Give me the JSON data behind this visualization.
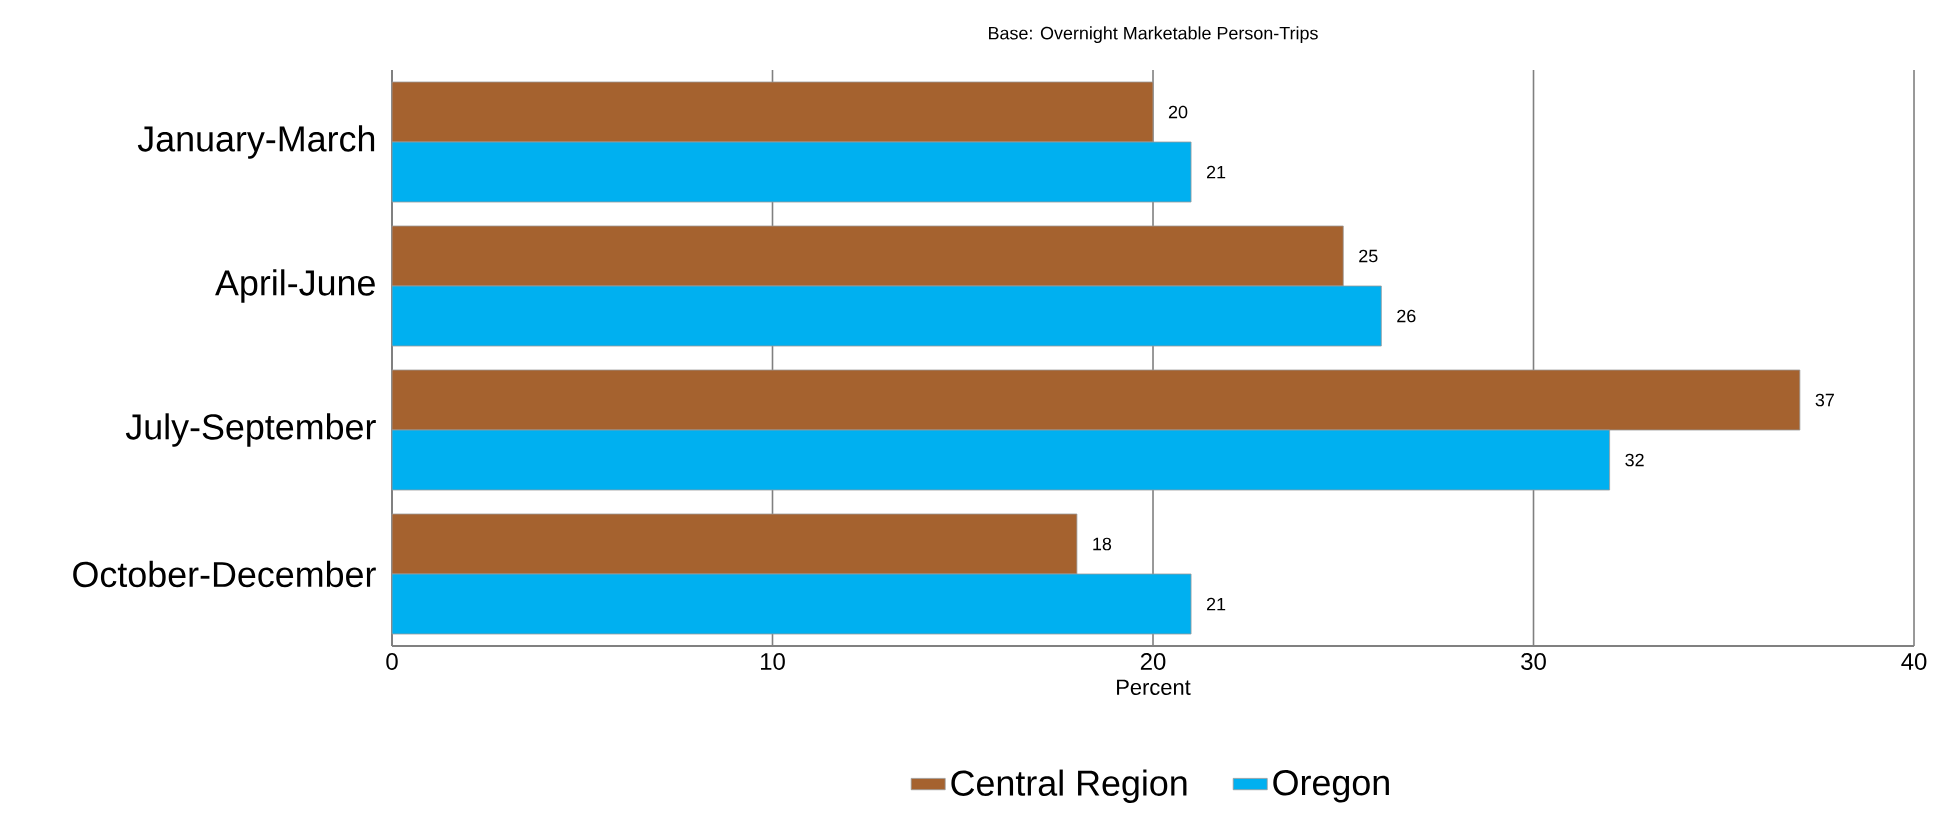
{
  "chart_data": {
    "type": "bar",
    "orientation": "horizontal",
    "title": "Base: Overnight Marketable Person-Trips",
    "xlabel": "Percent",
    "categories": [
      "January-March",
      "April-June",
      "July-September",
      "October-December"
    ],
    "series": [
      {
        "name": "Central Region",
        "color": "#a5622f",
        "values": [
          20,
          25,
          37,
          18
        ]
      },
      {
        "name": "Oregon",
        "color": "#00b0f0",
        "values": [
          21,
          26,
          32,
          21
        ]
      }
    ],
    "xlim": [
      0,
      40
    ],
    "xticks": [
      0,
      10,
      20,
      30,
      40
    ],
    "grid": "x",
    "legend": "bottom",
    "data_labels": true
  }
}
